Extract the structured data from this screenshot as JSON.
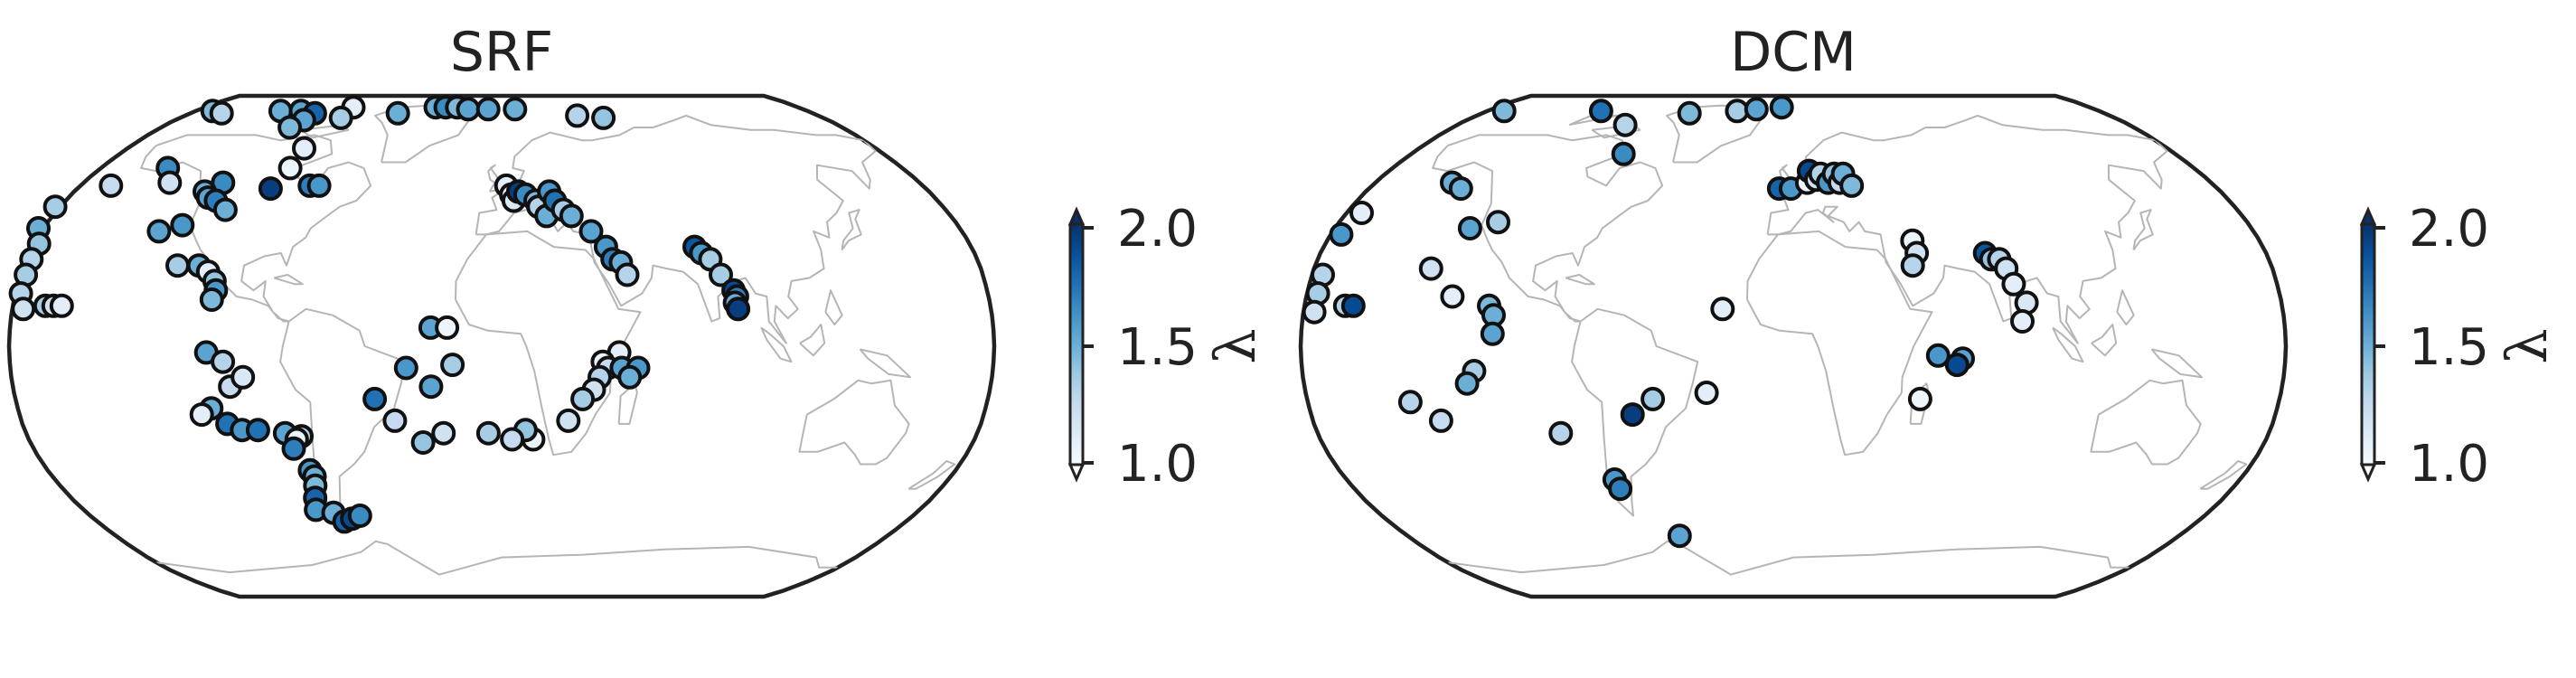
{
  "chart_data": [
    {
      "type": "scatter",
      "title": "SRF",
      "projection": "Robinson",
      "color_map": "Blues",
      "colorbar": {
        "label": "λ",
        "ticks": [
          "1.0",
          "1.5",
          "2.0"
        ],
        "range": [
          1.0,
          2.0
        ],
        "extend": "both"
      },
      "points": [
        {
          "lon": -170,
          "lat": 80,
          "v": 1.45
        },
        {
          "lon": -162,
          "lat": 79,
          "v": 1.3
        },
        {
          "lon": -130,
          "lat": 80,
          "v": 1.5
        },
        {
          "lon": -118,
          "lat": 80,
          "v": 1.55
        },
        {
          "lon": -108,
          "lat": 79,
          "v": 1.8
        },
        {
          "lon": -109,
          "lat": 76,
          "v": 1.55
        },
        {
          "lon": -112,
          "lat": 73,
          "v": 1.45
        },
        {
          "lon": -90,
          "lat": 82,
          "v": 1.1
        },
        {
          "lon": -90,
          "lat": 77,
          "v": 1.35
        },
        {
          "lon": -60,
          "lat": 79,
          "v": 1.5
        },
        {
          "lon": -40,
          "lat": 82,
          "v": 1.5
        },
        {
          "lon": -34,
          "lat": 82,
          "v": 1.65
        },
        {
          "lon": -27,
          "lat": 82,
          "v": 1.45
        },
        {
          "lon": -20,
          "lat": 81,
          "v": 1.55
        },
        {
          "lon": -8,
          "lat": 81,
          "v": 1.55
        },
        {
          "lon": 8,
          "lat": 81,
          "v": 1.5
        },
        {
          "lon": 43,
          "lat": 78,
          "v": 1.3
        },
        {
          "lon": 57,
          "lat": 77,
          "v": 1.4
        },
        {
          "lon": -95,
          "lat": 65,
          "v": 1.1
        },
        {
          "lon": -95,
          "lat": 58,
          "v": 1.05
        },
        {
          "lon": -150,
          "lat": 58,
          "v": 1.65
        },
        {
          "lon": -143,
          "lat": 53,
          "v": 1.2
        },
        {
          "lon": -120,
          "lat": 53,
          "v": 1.65
        },
        {
          "lon": -125,
          "lat": 50,
          "v": 1.5
        },
        {
          "lon": -122,
          "lat": 48,
          "v": 1.55
        },
        {
          "lon": -118,
          "lat": 47,
          "v": 1.7
        },
        {
          "lon": -112,
          "lat": 44,
          "v": 1.5
        },
        {
          "lon": -98,
          "lat": 51,
          "v": 1.95
        },
        {
          "lon": -82,
          "lat": 52,
          "v": 1.7
        },
        {
          "lon": -78,
          "lat": 52,
          "v": 1.6
        },
        {
          "lon": -126,
          "lat": 39,
          "v": 1.6
        },
        {
          "lon": -134,
          "lat": 37,
          "v": 1.55
        },
        {
          "lon": -167,
          "lat": 52,
          "v": 1.25
        },
        {
          "lon": -182,
          "lat": 45,
          "v": 1.35
        },
        {
          "lon": -182,
          "lat": 38,
          "v": 1.5
        },
        {
          "lon": -178,
          "lat": 33,
          "v": 1.4
        },
        {
          "lon": -178,
          "lat": 28,
          "v": 1.3
        },
        {
          "lon": -178,
          "lat": 23,
          "v": 1.35
        },
        {
          "lon": -178,
          "lat": 17,
          "v": 1.3
        },
        {
          "lon": -176,
          "lat": 12,
          "v": 1.2
        },
        {
          "lon": -168,
          "lat": 13,
          "v": 1.35
        },
        {
          "lon": -165,
          "lat": 13,
          "v": 1.2
        },
        {
          "lon": -162,
          "lat": 13,
          "v": 1.1
        },
        {
          "lon": -122,
          "lat": 26,
          "v": 1.35
        },
        {
          "lon": -114,
          "lat": 26,
          "v": 1.5
        },
        {
          "lon": -110,
          "lat": 24,
          "v": 1.1
        },
        {
          "lon": -107,
          "lat": 21,
          "v": 1.4
        },
        {
          "lon": -106,
          "lat": 18,
          "v": 1.6
        },
        {
          "lon": -107,
          "lat": 15,
          "v": 1.45
        },
        {
          "lon": -108,
          "lat": -2,
          "v": 1.55
        },
        {
          "lon": -102,
          "lat": -5,
          "v": 1.3
        },
        {
          "lon": -100,
          "lat": -13,
          "v": 1.25
        },
        {
          "lon": -95,
          "lat": -10,
          "v": 1.15
        },
        {
          "lon": -108,
          "lat": -20,
          "v": 1.5
        },
        {
          "lon": -112,
          "lat": -22,
          "v": 1.1
        },
        {
          "lon": -103,
          "lat": -25,
          "v": 1.75
        },
        {
          "lon": -98,
          "lat": -27,
          "v": 1.6
        },
        {
          "lon": -92,
          "lat": -27,
          "v": 1.75
        },
        {
          "lon": -82,
          "lat": -28,
          "v": 1.55
        },
        {
          "lon": -76,
          "lat": -29,
          "v": 1.3
        },
        {
          "lon": -78,
          "lat": -30,
          "v": 1.05
        },
        {
          "lon": -80,
          "lat": -33,
          "v": 1.7
        },
        {
          "lon": -76,
          "lat": -40,
          "v": 1.6
        },
        {
          "lon": -75,
          "lat": -42,
          "v": 1.5
        },
        {
          "lon": -76,
          "lat": -45,
          "v": 1.45
        },
        {
          "lon": -78,
          "lat": -49,
          "v": 1.8
        },
        {
          "lon": -80,
          "lat": -53,
          "v": 1.6
        },
        {
          "lon": -73,
          "lat": -54,
          "v": 1.5
        },
        {
          "lon": -70,
          "lat": -57,
          "v": 1.8
        },
        {
          "lon": -66,
          "lat": -56,
          "v": 1.9
        },
        {
          "lon": -62,
          "lat": -55,
          "v": 1.65
        },
        {
          "lon": -47,
          "lat": -17,
          "v": 1.75
        },
        {
          "lon": -40,
          "lat": -24,
          "v": 1.25
        },
        {
          "lon": -35,
          "lat": -7,
          "v": 1.6
        },
        {
          "lon": -26,
          "lat": -13,
          "v": 1.55
        },
        {
          "lon": -18,
          "lat": -6,
          "v": 1.35
        },
        {
          "lon": -22,
          "lat": -28,
          "v": 1.2
        },
        {
          "lon": -30,
          "lat": -31,
          "v": 1.4
        },
        {
          "lon": -5,
          "lat": -28,
          "v": 1.35
        },
        {
          "lon": -26,
          "lat": 6,
          "v": 1.55
        },
        {
          "lon": -20,
          "lat": 6,
          "v": 1.05
        },
        {
          "lon": 2,
          "lat": 52,
          "v": 1.1
        },
        {
          "lon": 4,
          "lat": 49,
          "v": 1.0
        },
        {
          "lon": 5,
          "lat": 47,
          "v": 1.15
        },
        {
          "lon": 7,
          "lat": 50,
          "v": 1.95
        },
        {
          "lon": 10,
          "lat": 49,
          "v": 1.65
        },
        {
          "lon": 14,
          "lat": 47,
          "v": 1.45
        },
        {
          "lon": 15,
          "lat": 45,
          "v": 1.3
        },
        {
          "lon": 18,
          "lat": 42,
          "v": 1.5
        },
        {
          "lon": 20,
          "lat": 50,
          "v": 1.6
        },
        {
          "lon": 22,
          "lat": 47,
          "v": 1.75
        },
        {
          "lon": 25,
          "lat": 44,
          "v": 1.35
        },
        {
          "lon": 28,
          "lat": 42,
          "v": 1.5
        },
        {
          "lon": 35,
          "lat": 37,
          "v": 1.55
        },
        {
          "lon": 40,
          "lat": 32,
          "v": 1.6
        },
        {
          "lon": 42,
          "lat": 28,
          "v": 1.7
        },
        {
          "lon": 45,
          "lat": 27,
          "v": 1.5
        },
        {
          "lon": 47,
          "lat": 23,
          "v": 1.3
        },
        {
          "lon": 74,
          "lat": 32,
          "v": 1.85
        },
        {
          "lon": 76,
          "lat": 30,
          "v": 1.6
        },
        {
          "lon": 79,
          "lat": 28,
          "v": 1.35
        },
        {
          "lon": 82,
          "lat": 23,
          "v": 1.35
        },
        {
          "lon": 86,
          "lat": 18,
          "v": 1.9
        },
        {
          "lon": 87,
          "lat": 16,
          "v": 1.7
        },
        {
          "lon": 86,
          "lat": 14,
          "v": 1.5
        },
        {
          "lon": 87,
          "lat": 12,
          "v": 1.95
        },
        {
          "lon": 43,
          "lat": -2,
          "v": 1.1
        },
        {
          "lon": 37,
          "lat": -5,
          "v": 1.05
        },
        {
          "lon": 39,
          "lat": -7,
          "v": 1.25
        },
        {
          "lon": 36,
          "lat": -10,
          "v": 1.3
        },
        {
          "lon": 34,
          "lat": -14,
          "v": 1.2
        },
        {
          "lon": 30,
          "lat": -17,
          "v": 1.35
        },
        {
          "lon": 25,
          "lat": -24,
          "v": 1.2
        },
        {
          "lon": 12,
          "lat": -30,
          "v": 1.05
        },
        {
          "lon": 9,
          "lat": -27,
          "v": 1.4
        },
        {
          "lon": 4,
          "lat": -30,
          "v": 1.25
        },
        {
          "lon": 44,
          "lat": -7,
          "v": 1.55
        },
        {
          "lon": 50,
          "lat": -7,
          "v": 1.6
        },
        {
          "lon": 47,
          "lat": -10,
          "v": 1.5
        }
      ]
    },
    {
      "type": "scatter",
      "title": "DCM",
      "projection": "Robinson",
      "color_map": "Blues",
      "colorbar": {
        "label": "λ",
        "ticks": [
          "1.0",
          "1.5",
          "2.0"
        ],
        "range": [
          1.0,
          2.0
        ],
        "extend": "both"
      },
      "points": [
        {
          "lon": -170,
          "lat": 80,
          "v": 1.45
        },
        {
          "lon": -113,
          "lat": 80,
          "v": 1.75
        },
        {
          "lon": -90,
          "lat": 74,
          "v": 1.3
        },
        {
          "lon": -60,
          "lat": 79,
          "v": 1.45
        },
        {
          "lon": -33,
          "lat": 80,
          "v": 1.35
        },
        {
          "lon": -22,
          "lat": 81,
          "v": 1.55
        },
        {
          "lon": -7,
          "lat": 82,
          "v": 1.6
        },
        {
          "lon": -80,
          "lat": 63,
          "v": 1.65
        },
        {
          "lon": -147,
          "lat": 53,
          "v": 1.5
        },
        {
          "lon": -141,
          "lat": 51,
          "v": 1.5
        },
        {
          "lon": -127,
          "lat": 38,
          "v": 1.55
        },
        {
          "lon": -117,
          "lat": 40,
          "v": 1.35
        },
        {
          "lon": -174,
          "lat": 43,
          "v": 1.1
        },
        {
          "lon": -176,
          "lat": 36,
          "v": 1.6
        },
        {
          "lon": -136,
          "lat": 25,
          "v": 1.2
        },
        {
          "lon": -126,
          "lat": 16,
          "v": 1.1
        },
        {
          "lon": -176,
          "lat": 23,
          "v": 1.3
        },
        {
          "lon": -176,
          "lat": 17,
          "v": 1.35
        },
        {
          "lon": -176,
          "lat": 11,
          "v": 1.2
        },
        {
          "lon": -165,
          "lat": 13,
          "v": 1.3
        },
        {
          "lon": -162,
          "lat": 13,
          "v": 1.9
        },
        {
          "lon": -112,
          "lat": 13,
          "v": 1.45
        },
        {
          "lon": -110,
          "lat": 10,
          "v": 1.5
        },
        {
          "lon": -110,
          "lat": 4,
          "v": 1.55
        },
        {
          "lon": -117,
          "lat": -8,
          "v": 1.35
        },
        {
          "lon": -120,
          "lat": -12,
          "v": 1.5
        },
        {
          "lon": -142,
          "lat": -18,
          "v": 1.3
        },
        {
          "lon": -132,
          "lat": -24,
          "v": 1.25
        },
        {
          "lon": -88,
          "lat": -28,
          "v": 1.3
        },
        {
          "lon": -60,
          "lat": -22,
          "v": 1.95
        },
        {
          "lon": -52,
          "lat": -17,
          "v": 1.35
        },
        {
          "lon": -72,
          "lat": -43,
          "v": 1.6
        },
        {
          "lon": -71,
          "lat": -46,
          "v": 1.7
        },
        {
          "lon": -53,
          "lat": -62,
          "v": 1.55
        },
        {
          "lon": -26,
          "lat": 12,
          "v": 1.1
        },
        {
          "lon": -32,
          "lat": -15,
          "v": 1.1
        },
        {
          "lon": -6,
          "lat": 51,
          "v": 1.8
        },
        {
          "lon": -1,
          "lat": 51,
          "v": 1.6
        },
        {
          "lon": 6,
          "lat": 53,
          "v": 1.05
        },
        {
          "lon": 7,
          "lat": 57,
          "v": 1.9
        },
        {
          "lon": 10,
          "lat": 54,
          "v": 1.2
        },
        {
          "lon": 12,
          "lat": 56,
          "v": 1.3
        },
        {
          "lon": 15,
          "lat": 53,
          "v": 1.6
        },
        {
          "lon": 18,
          "lat": 56,
          "v": 1.4
        },
        {
          "lon": 20,
          "lat": 53,
          "v": 1.25
        },
        {
          "lon": 22,
          "lat": 56,
          "v": 1.5
        },
        {
          "lon": 25,
          "lat": 52,
          "v": 1.45
        },
        {
          "lon": 46,
          "lat": 34,
          "v": 1.05
        },
        {
          "lon": 47,
          "lat": 30,
          "v": 1.2
        },
        {
          "lon": 45,
          "lat": 26,
          "v": 1.3
        },
        {
          "lon": 73,
          "lat": 30,
          "v": 1.85
        },
        {
          "lon": 75,
          "lat": 28,
          "v": 1.4
        },
        {
          "lon": 78,
          "lat": 28,
          "v": 1.3
        },
        {
          "lon": 80,
          "lat": 25,
          "v": 1.2
        },
        {
          "lon": 82,
          "lat": 20,
          "v": 1.1
        },
        {
          "lon": 86,
          "lat": 14,
          "v": 1.15
        },
        {
          "lon": 84,
          "lat": 8,
          "v": 1.1
        },
        {
          "lon": 53,
          "lat": -3,
          "v": 1.6
        },
        {
          "lon": 62,
          "lat": -4,
          "v": 1.55
        },
        {
          "lon": 60,
          "lat": -6,
          "v": 1.9
        },
        {
          "lon": 47,
          "lat": -17,
          "v": 1.05
        }
      ]
    }
  ]
}
